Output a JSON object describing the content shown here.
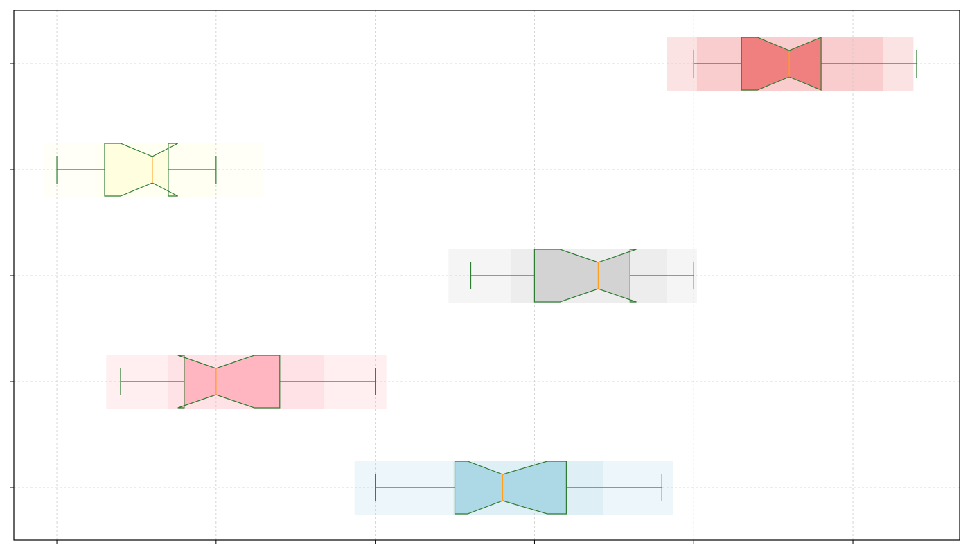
{
  "chart_data": {
    "type": "boxplot",
    "orientation": "horizontal",
    "notched": true,
    "title": "",
    "xlabel": "",
    "ylabel": "",
    "xlim": [
      -0.27,
      5.67
    ],
    "xticks": [
      0,
      1,
      2,
      3,
      4,
      5
    ],
    "tick_labels_visible": false,
    "grid": true,
    "series": [
      {
        "color": "#add8e6",
        "whisker_low": 2.0,
        "q1": 2.5,
        "median": 2.8,
        "q3": 3.2,
        "whisker_high": 3.8,
        "notch_low": 2.58,
        "notch_high": 3.08,
        "bands": [
          [
            1.87,
            3.87
          ],
          [
            2.49,
            3.43
          ]
        ]
      },
      {
        "color": "#ffb6c1",
        "whisker_low": 0.4,
        "q1": 0.8,
        "median": 1.0,
        "q3": 1.4,
        "whisker_high": 2.0,
        "notch_low": 0.76,
        "notch_high": 1.24,
        "bands": [
          [
            0.31,
            2.07
          ],
          [
            0.7,
            1.68
          ]
        ]
      },
      {
        "color": "#d3d3d3",
        "whisker_low": 2.6,
        "q1": 3.0,
        "median": 3.4,
        "q3": 3.6,
        "whisker_high": 4.0,
        "notch_low": 3.16,
        "notch_high": 3.64,
        "bands": [
          [
            2.46,
            4.02
          ],
          [
            2.85,
            3.83
          ]
        ]
      },
      {
        "color": "#ffffe0",
        "whisker_low": 0.0,
        "q1": 0.3,
        "median": 0.6,
        "q3": 0.7,
        "whisker_high": 1.0,
        "notch_low": 0.4,
        "notch_high": 0.76,
        "bands": [
          [
            -0.08,
            1.3
          ],
          [
            0.25,
            1.0
          ]
        ]
      },
      {
        "color": "#f08080",
        "whisker_low": 4.0,
        "q1": 4.3,
        "median": 4.6,
        "q3": 4.8,
        "whisker_high": 5.4,
        "notch_low": 4.4,
        "notch_high": 4.8,
        "bands": [
          [
            3.83,
            5.38
          ],
          [
            4.02,
            5.19
          ]
        ]
      }
    ],
    "colors": {
      "box_edge": "#2e7d32",
      "median_line": "#ff9f1a",
      "grid": "#cccccc",
      "axes": "#000000"
    }
  }
}
